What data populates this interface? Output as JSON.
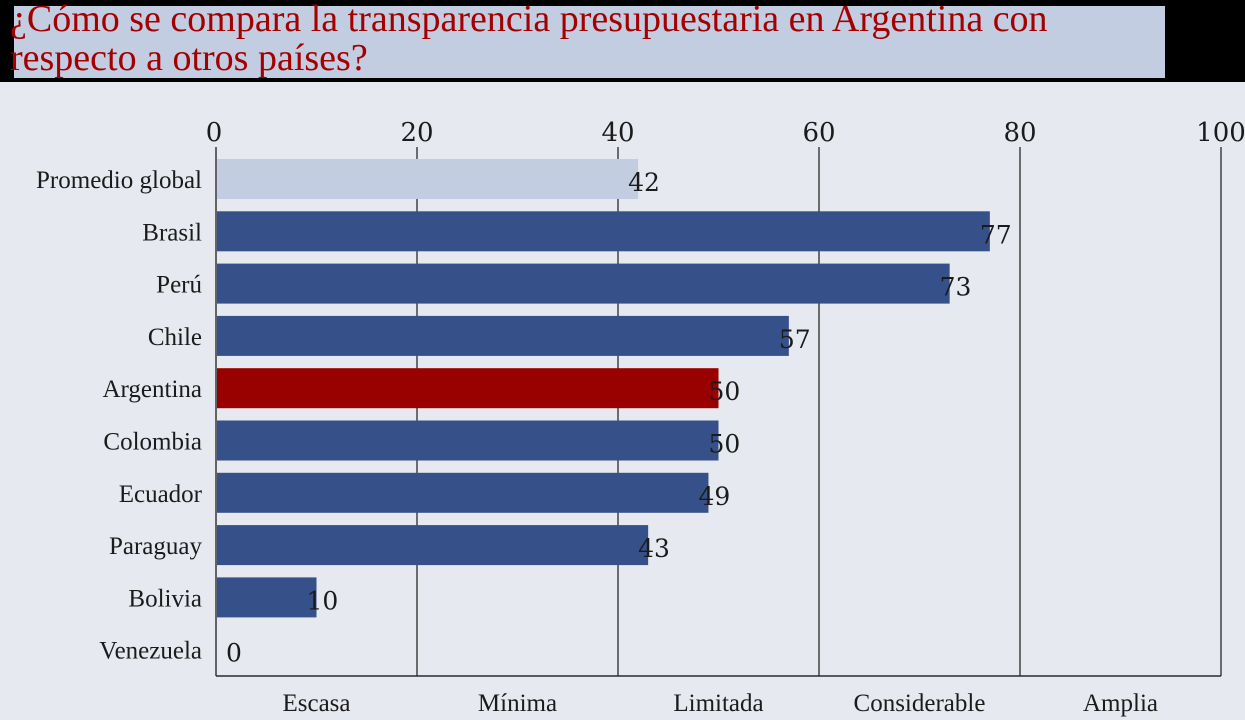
{
  "title": "¿Cómo se compara la transparencia presupuestaria en Argentina con respecto a otros países?",
  "colors": {
    "bar_default": "#36508a",
    "bar_highlight": "#990000",
    "bar_reference": "#c3cde2",
    "title_text": "#a50000",
    "background": "#e6e9ef"
  },
  "chart_data": {
    "type": "bar",
    "orientation": "horizontal",
    "categories": [
      "Promedio global",
      "Brasil",
      "Perú",
      "Chile",
      "Argentina",
      "Colombia",
      "Ecuador",
      "Paraguay",
      "Bolivia",
      "Venezuela"
    ],
    "values": [
      42,
      77,
      73,
      57,
      50,
      50,
      49,
      43,
      10,
      0
    ],
    "value_labels": [
      "42",
      "77",
      "73",
      "57",
      "50",
      "50",
      "49",
      "43",
      "10",
      "0"
    ],
    "highlight": [
      "reference",
      "default",
      "default",
      "default",
      "highlight",
      "default",
      "default",
      "default",
      "default",
      "default"
    ],
    "xlim": [
      0,
      100
    ],
    "xticks": [
      0,
      20,
      40,
      60,
      80,
      100
    ],
    "xtick_labels": [
      "0",
      "20",
      "40",
      "60",
      "80",
      "100"
    ],
    "x_axis_position": "top",
    "grid": "vertical lines at 20, 40, 60, 80, 100",
    "bands": [
      {
        "label": "Escasa",
        "from": 0,
        "to": 20
      },
      {
        "label": "Mínima",
        "from": 20,
        "to": 40
      },
      {
        "label": "Limitada",
        "from": 40,
        "to": 60
      },
      {
        "label": "Considerable",
        "from": 60,
        "to": 80
      },
      {
        "label": "Amplia",
        "from": 80,
        "to": 100
      }
    ]
  }
}
